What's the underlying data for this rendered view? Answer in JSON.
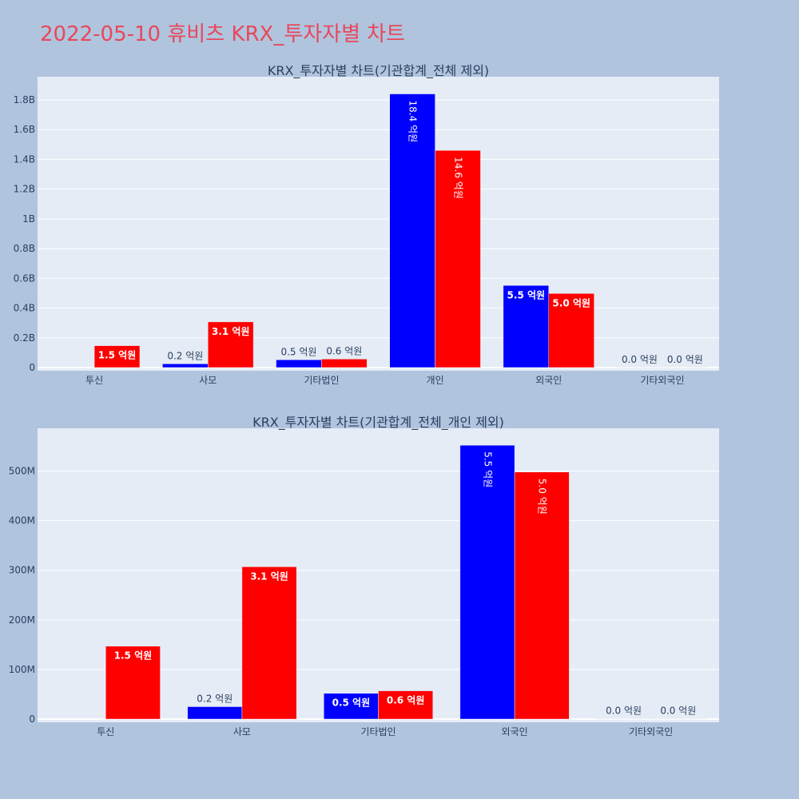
{
  "page_title": "2022-05-10 휴비츠 KRX_투자자별 차트",
  "colors": {
    "buy": "#0000ff",
    "sell": "#ff0000",
    "plot_bg": "#e5ecf6",
    "page_bg": "#b0c4de",
    "title": "#e8485a"
  },
  "chart_data": [
    {
      "type": "bar",
      "title": "KRX_투자자별 차트(기관합계_전체 제외)",
      "categories": [
        "투신",
        "사모",
        "기타법인",
        "개인",
        "외국인",
        "기타외국인"
      ],
      "series": [
        {
          "color": "#0000ff",
          "values": [
            0,
            25000000,
            52000000,
            1840000000,
            552000000,
            500000
          ],
          "labels": [
            "",
            "0.2 억원",
            "0.5 억원",
            "18.4 억원",
            "5.5 억원",
            "0.0 억원"
          ]
        },
        {
          "color": "#ff0000",
          "values": [
            147000000,
            307000000,
            57000000,
            1460000000,
            498000000,
            500000
          ],
          "labels": [
            "1.5 억원",
            "3.1 억원",
            "0.6 억원",
            "14.6 억원",
            "5.0 억원",
            "0.0 억원"
          ]
        }
      ],
      "ylim": [
        0,
        1945000000
      ],
      "yticks": [
        0,
        200000000,
        400000000,
        600000000,
        800000000,
        1000000000,
        1200000000,
        1400000000,
        1600000000,
        1800000000
      ],
      "ytick_labels": [
        "0",
        "0.2B",
        "0.4B",
        "0.6B",
        "0.8B",
        "1B",
        "1.2B",
        "1.4B",
        "1.6B",
        "1.8B"
      ],
      "grid": true
    },
    {
      "type": "bar",
      "title": "KRX_투자자별 차트(기관합계_전체_개인 제외)",
      "categories": [
        "투신",
        "사모",
        "기타법인",
        "외국인",
        "기타외국인"
      ],
      "series": [
        {
          "color": "#0000ff",
          "values": [
            0,
            25000000,
            52000000,
            552000000,
            500000
          ],
          "labels": [
            "",
            "0.2 억원",
            "0.5 억원",
            "5.5 억원",
            "0.0 억원"
          ]
        },
        {
          "color": "#ff0000",
          "values": [
            147000000,
            307000000,
            57000000,
            498000000,
            500000
          ],
          "labels": [
            "1.5 억원",
            "3.1 억원",
            "0.6 억원",
            "5.0 억원",
            "0.0 억원"
          ]
        }
      ],
      "ylim": [
        0,
        583000000
      ],
      "yticks": [
        0,
        100000000,
        200000000,
        300000000,
        400000000,
        500000000
      ],
      "ytick_labels": [
        "0",
        "100M",
        "200M",
        "300M",
        "400M",
        "500M"
      ],
      "grid": true
    }
  ]
}
